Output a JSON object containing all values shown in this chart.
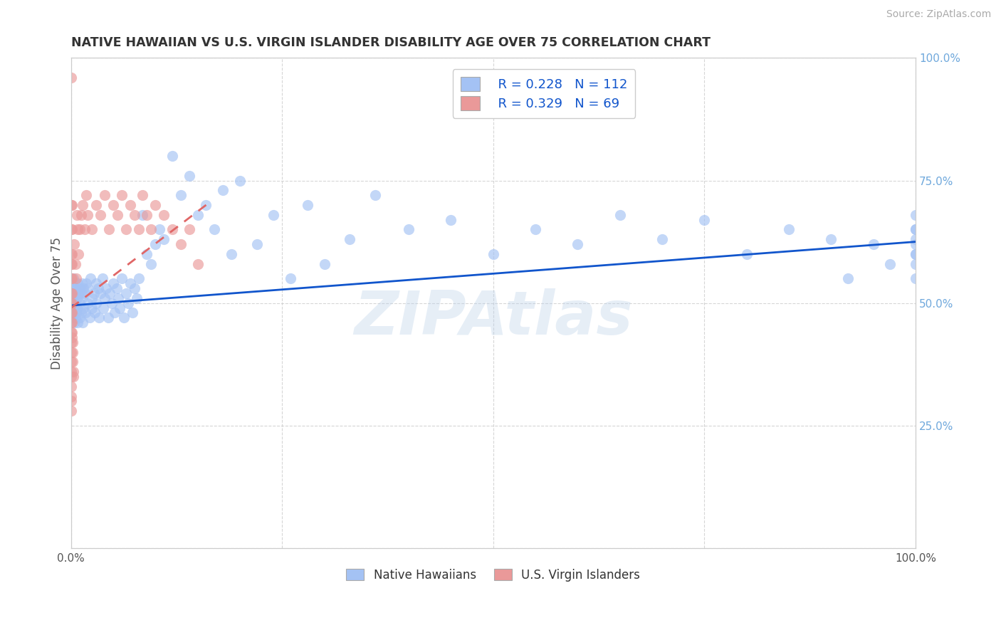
{
  "title": "NATIVE HAWAIIAN VS U.S. VIRGIN ISLANDER DISABILITY AGE OVER 75 CORRELATION CHART",
  "source": "Source: ZipAtlas.com",
  "ylabel": "Disability Age Over 75",
  "xlim": [
    0.0,
    1.0
  ],
  "ylim": [
    0.0,
    1.0
  ],
  "xticks": [
    0.0,
    0.25,
    0.5,
    0.75,
    1.0
  ],
  "yticks": [
    0.0,
    0.25,
    0.5,
    0.75,
    1.0
  ],
  "xticklabels": [
    "0.0%",
    "",
    "",
    "",
    "100.0%"
  ],
  "yticklabels_left": [
    "",
    "",
    "",
    "",
    ""
  ],
  "yticklabels_right": [
    "",
    "25.0%",
    "50.0%",
    "75.0%",
    "100.0%"
  ],
  "legend_label1": "Native Hawaiians",
  "legend_label2": "U.S. Virgin Islanders",
  "r1": 0.228,
  "n1": 112,
  "r2": 0.329,
  "n2": 69,
  "color1": "#a4c2f4",
  "color2": "#ea9999",
  "trendline1_color": "#1155cc",
  "trendline2_color": "#e06666",
  "watermark": "ZIPAtlas",
  "background_color": "#ffffff",
  "native_hawaiian_x": [
    0.001,
    0.001,
    0.001,
    0.002,
    0.002,
    0.002,
    0.003,
    0.003,
    0.003,
    0.004,
    0.005,
    0.005,
    0.005,
    0.006,
    0.006,
    0.007,
    0.007,
    0.008,
    0.008,
    0.009,
    0.01,
    0.01,
    0.01,
    0.012,
    0.012,
    0.013,
    0.013,
    0.014,
    0.015,
    0.015,
    0.016,
    0.017,
    0.018,
    0.02,
    0.02,
    0.022,
    0.023,
    0.025,
    0.025,
    0.027,
    0.028,
    0.03,
    0.03,
    0.032,
    0.033,
    0.035,
    0.037,
    0.038,
    0.04,
    0.042,
    0.044,
    0.046,
    0.048,
    0.05,
    0.052,
    0.054,
    0.056,
    0.058,
    0.06,
    0.063,
    0.065,
    0.068,
    0.07,
    0.073,
    0.075,
    0.078,
    0.08,
    0.085,
    0.09,
    0.095,
    0.1,
    0.105,
    0.11,
    0.12,
    0.13,
    0.14,
    0.15,
    0.16,
    0.17,
    0.18,
    0.19,
    0.2,
    0.22,
    0.24,
    0.26,
    0.28,
    0.3,
    0.33,
    0.36,
    0.4,
    0.45,
    0.5,
    0.55,
    0.6,
    0.65,
    0.7,
    0.75,
    0.8,
    0.85,
    0.9,
    0.92,
    0.95,
    0.97,
    1.0,
    1.0,
    1.0,
    1.0,
    1.0,
    1.0,
    1.0,
    1.0,
    1.0
  ],
  "native_hawaiian_y": [
    0.54,
    0.48,
    0.52,
    0.5,
    0.53,
    0.47,
    0.51,
    0.49,
    0.55,
    0.46,
    0.5,
    0.53,
    0.47,
    0.52,
    0.48,
    0.51,
    0.49,
    0.54,
    0.46,
    0.52,
    0.5,
    0.53,
    0.47,
    0.52,
    0.48,
    0.51,
    0.54,
    0.46,
    0.53,
    0.49,
    0.52,
    0.48,
    0.54,
    0.5,
    0.53,
    0.47,
    0.55,
    0.51,
    0.49,
    0.52,
    0.48,
    0.54,
    0.5,
    0.53,
    0.47,
    0.52,
    0.55,
    0.49,
    0.51,
    0.53,
    0.47,
    0.52,
    0.5,
    0.54,
    0.48,
    0.53,
    0.51,
    0.49,
    0.55,
    0.47,
    0.52,
    0.5,
    0.54,
    0.48,
    0.53,
    0.51,
    0.55,
    0.68,
    0.6,
    0.58,
    0.62,
    0.65,
    0.63,
    0.8,
    0.72,
    0.76,
    0.68,
    0.7,
    0.65,
    0.73,
    0.6,
    0.75,
    0.62,
    0.68,
    0.55,
    0.7,
    0.58,
    0.63,
    0.72,
    0.65,
    0.67,
    0.6,
    0.65,
    0.62,
    0.68,
    0.63,
    0.67,
    0.6,
    0.65,
    0.63,
    0.55,
    0.62,
    0.58,
    0.65,
    0.6,
    0.55,
    0.62,
    0.68,
    0.6,
    0.58,
    0.63,
    0.65
  ],
  "virgin_islander_x": [
    0.0,
    0.0,
    0.0,
    0.0,
    0.0,
    0.0,
    0.0,
    0.0,
    0.0,
    0.0,
    0.0,
    0.0,
    0.0,
    0.0,
    0.0,
    0.0,
    0.0,
    0.0,
    0.0,
    0.0,
    0.001,
    0.001,
    0.001,
    0.001,
    0.001,
    0.001,
    0.001,
    0.001,
    0.001,
    0.001,
    0.001,
    0.002,
    0.002,
    0.002,
    0.003,
    0.003,
    0.004,
    0.005,
    0.006,
    0.007,
    0.008,
    0.009,
    0.01,
    0.012,
    0.014,
    0.016,
    0.018,
    0.02,
    0.025,
    0.03,
    0.035,
    0.04,
    0.045,
    0.05,
    0.055,
    0.06,
    0.065,
    0.07,
    0.075,
    0.08,
    0.085,
    0.09,
    0.095,
    0.1,
    0.11,
    0.12,
    0.13,
    0.14,
    0.15
  ],
  "virgin_islander_y": [
    0.96,
    0.7,
    0.65,
    0.6,
    0.58,
    0.55,
    0.52,
    0.5,
    0.48,
    0.46,
    0.44,
    0.42,
    0.4,
    0.38,
    0.36,
    0.35,
    0.33,
    0.31,
    0.3,
    0.28,
    0.7,
    0.65,
    0.6,
    0.58,
    0.55,
    0.52,
    0.5,
    0.48,
    0.46,
    0.44,
    0.43,
    0.42,
    0.4,
    0.38,
    0.36,
    0.35,
    0.62,
    0.58,
    0.55,
    0.68,
    0.65,
    0.6,
    0.65,
    0.68,
    0.7,
    0.65,
    0.72,
    0.68,
    0.65,
    0.7,
    0.68,
    0.72,
    0.65,
    0.7,
    0.68,
    0.72,
    0.65,
    0.7,
    0.68,
    0.65,
    0.72,
    0.68,
    0.65,
    0.7,
    0.68,
    0.65,
    0.62,
    0.65,
    0.58
  ],
  "trendline1_x": [
    0.0,
    1.0
  ],
  "trendline1_y": [
    0.495,
    0.625
  ],
  "trendline2_x": [
    0.0,
    0.16
  ],
  "trendline2_y": [
    0.49,
    0.7
  ]
}
